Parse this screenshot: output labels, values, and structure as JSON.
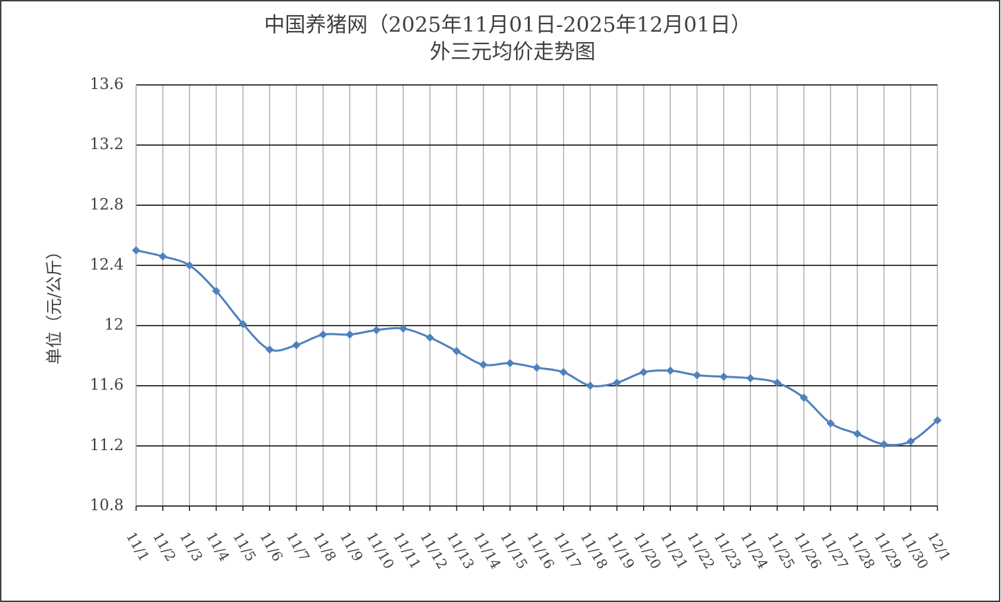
{
  "chart_data": {
    "type": "line",
    "title": "中国养猪网（2025年11月01日-2025年12月01日）",
    "subtitle": "外三元均价走势图",
    "y_label": "单位（元/公斤）",
    "categories": [
      "11/1",
      "11/2",
      "11/3",
      "11/4",
      "11/5",
      "11/6",
      "11/7",
      "11/8",
      "11/9",
      "11/10",
      "11/11",
      "11/12",
      "11/13",
      "11/14",
      "11/15",
      "11/16",
      "11/17",
      "11/18",
      "11/19",
      "11/20",
      "11/21",
      "11/22",
      "11/23",
      "11/24",
      "11/25",
      "11/26",
      "11/27",
      "11/28",
      "11/29",
      "11/30",
      "12/1"
    ],
    "series": [
      {
        "name": "外三元均价",
        "color": "#4f81bd",
        "values": [
          12.5,
          12.46,
          12.4,
          12.23,
          12.01,
          11.84,
          11.87,
          11.94,
          11.94,
          11.97,
          11.98,
          11.92,
          11.83,
          11.74,
          11.75,
          11.72,
          11.69,
          11.6,
          11.62,
          11.69,
          11.7,
          11.67,
          11.66,
          11.65,
          11.62,
          11.52,
          11.35,
          11.28,
          11.21,
          11.23,
          11.37
        ]
      }
    ],
    "ylim": [
      10.8,
      13.6
    ],
    "yticks": [
      10.8,
      11.2,
      11.6,
      12,
      12.4,
      12.8,
      13.2,
      13.6
    ],
    "grid": true
  }
}
